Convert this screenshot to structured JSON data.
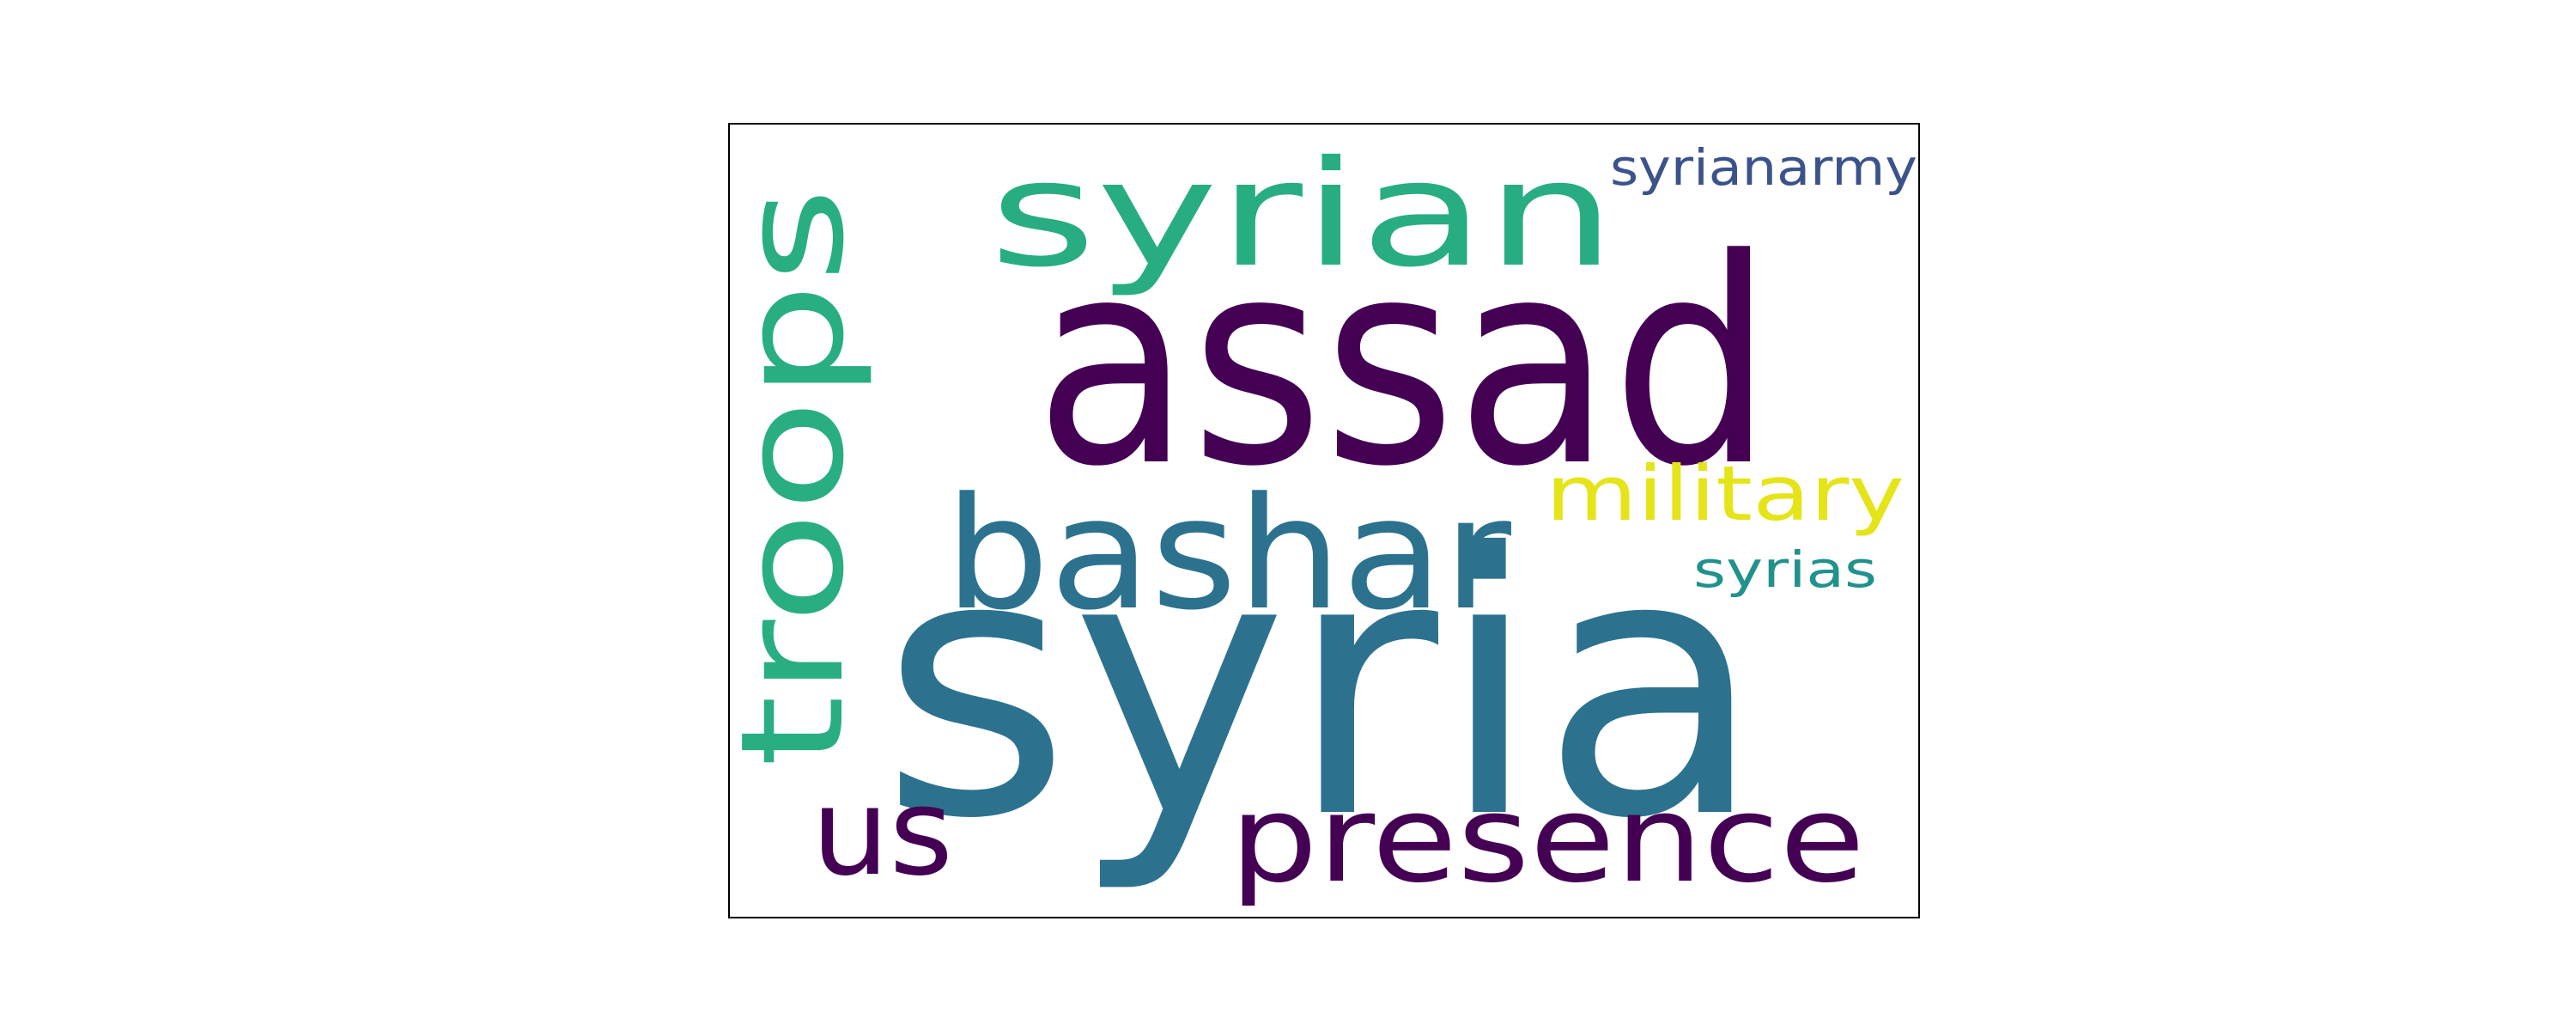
{
  "wordcloud": {
    "words": [
      {
        "id": "syria",
        "text": "syria",
        "color": "#2c728e"
      },
      {
        "id": "assad",
        "text": "assad",
        "color": "#440154"
      },
      {
        "id": "syrian",
        "text": "syrian",
        "color": "#27ad81"
      },
      {
        "id": "troops",
        "text": "troops",
        "color": "#28ae80"
      },
      {
        "id": "bashar",
        "text": "bashar",
        "color": "#2c728e"
      },
      {
        "id": "presence",
        "text": "presence",
        "color": "#440154"
      },
      {
        "id": "military",
        "text": "military",
        "color": "#e5e419"
      },
      {
        "id": "us",
        "text": "us",
        "color": "#440154"
      },
      {
        "id": "syrias",
        "text": "syrias",
        "color": "#21918c"
      },
      {
        "id": "syrianarmy",
        "text": "syrianarmy",
        "color": "#3b528b"
      }
    ]
  }
}
